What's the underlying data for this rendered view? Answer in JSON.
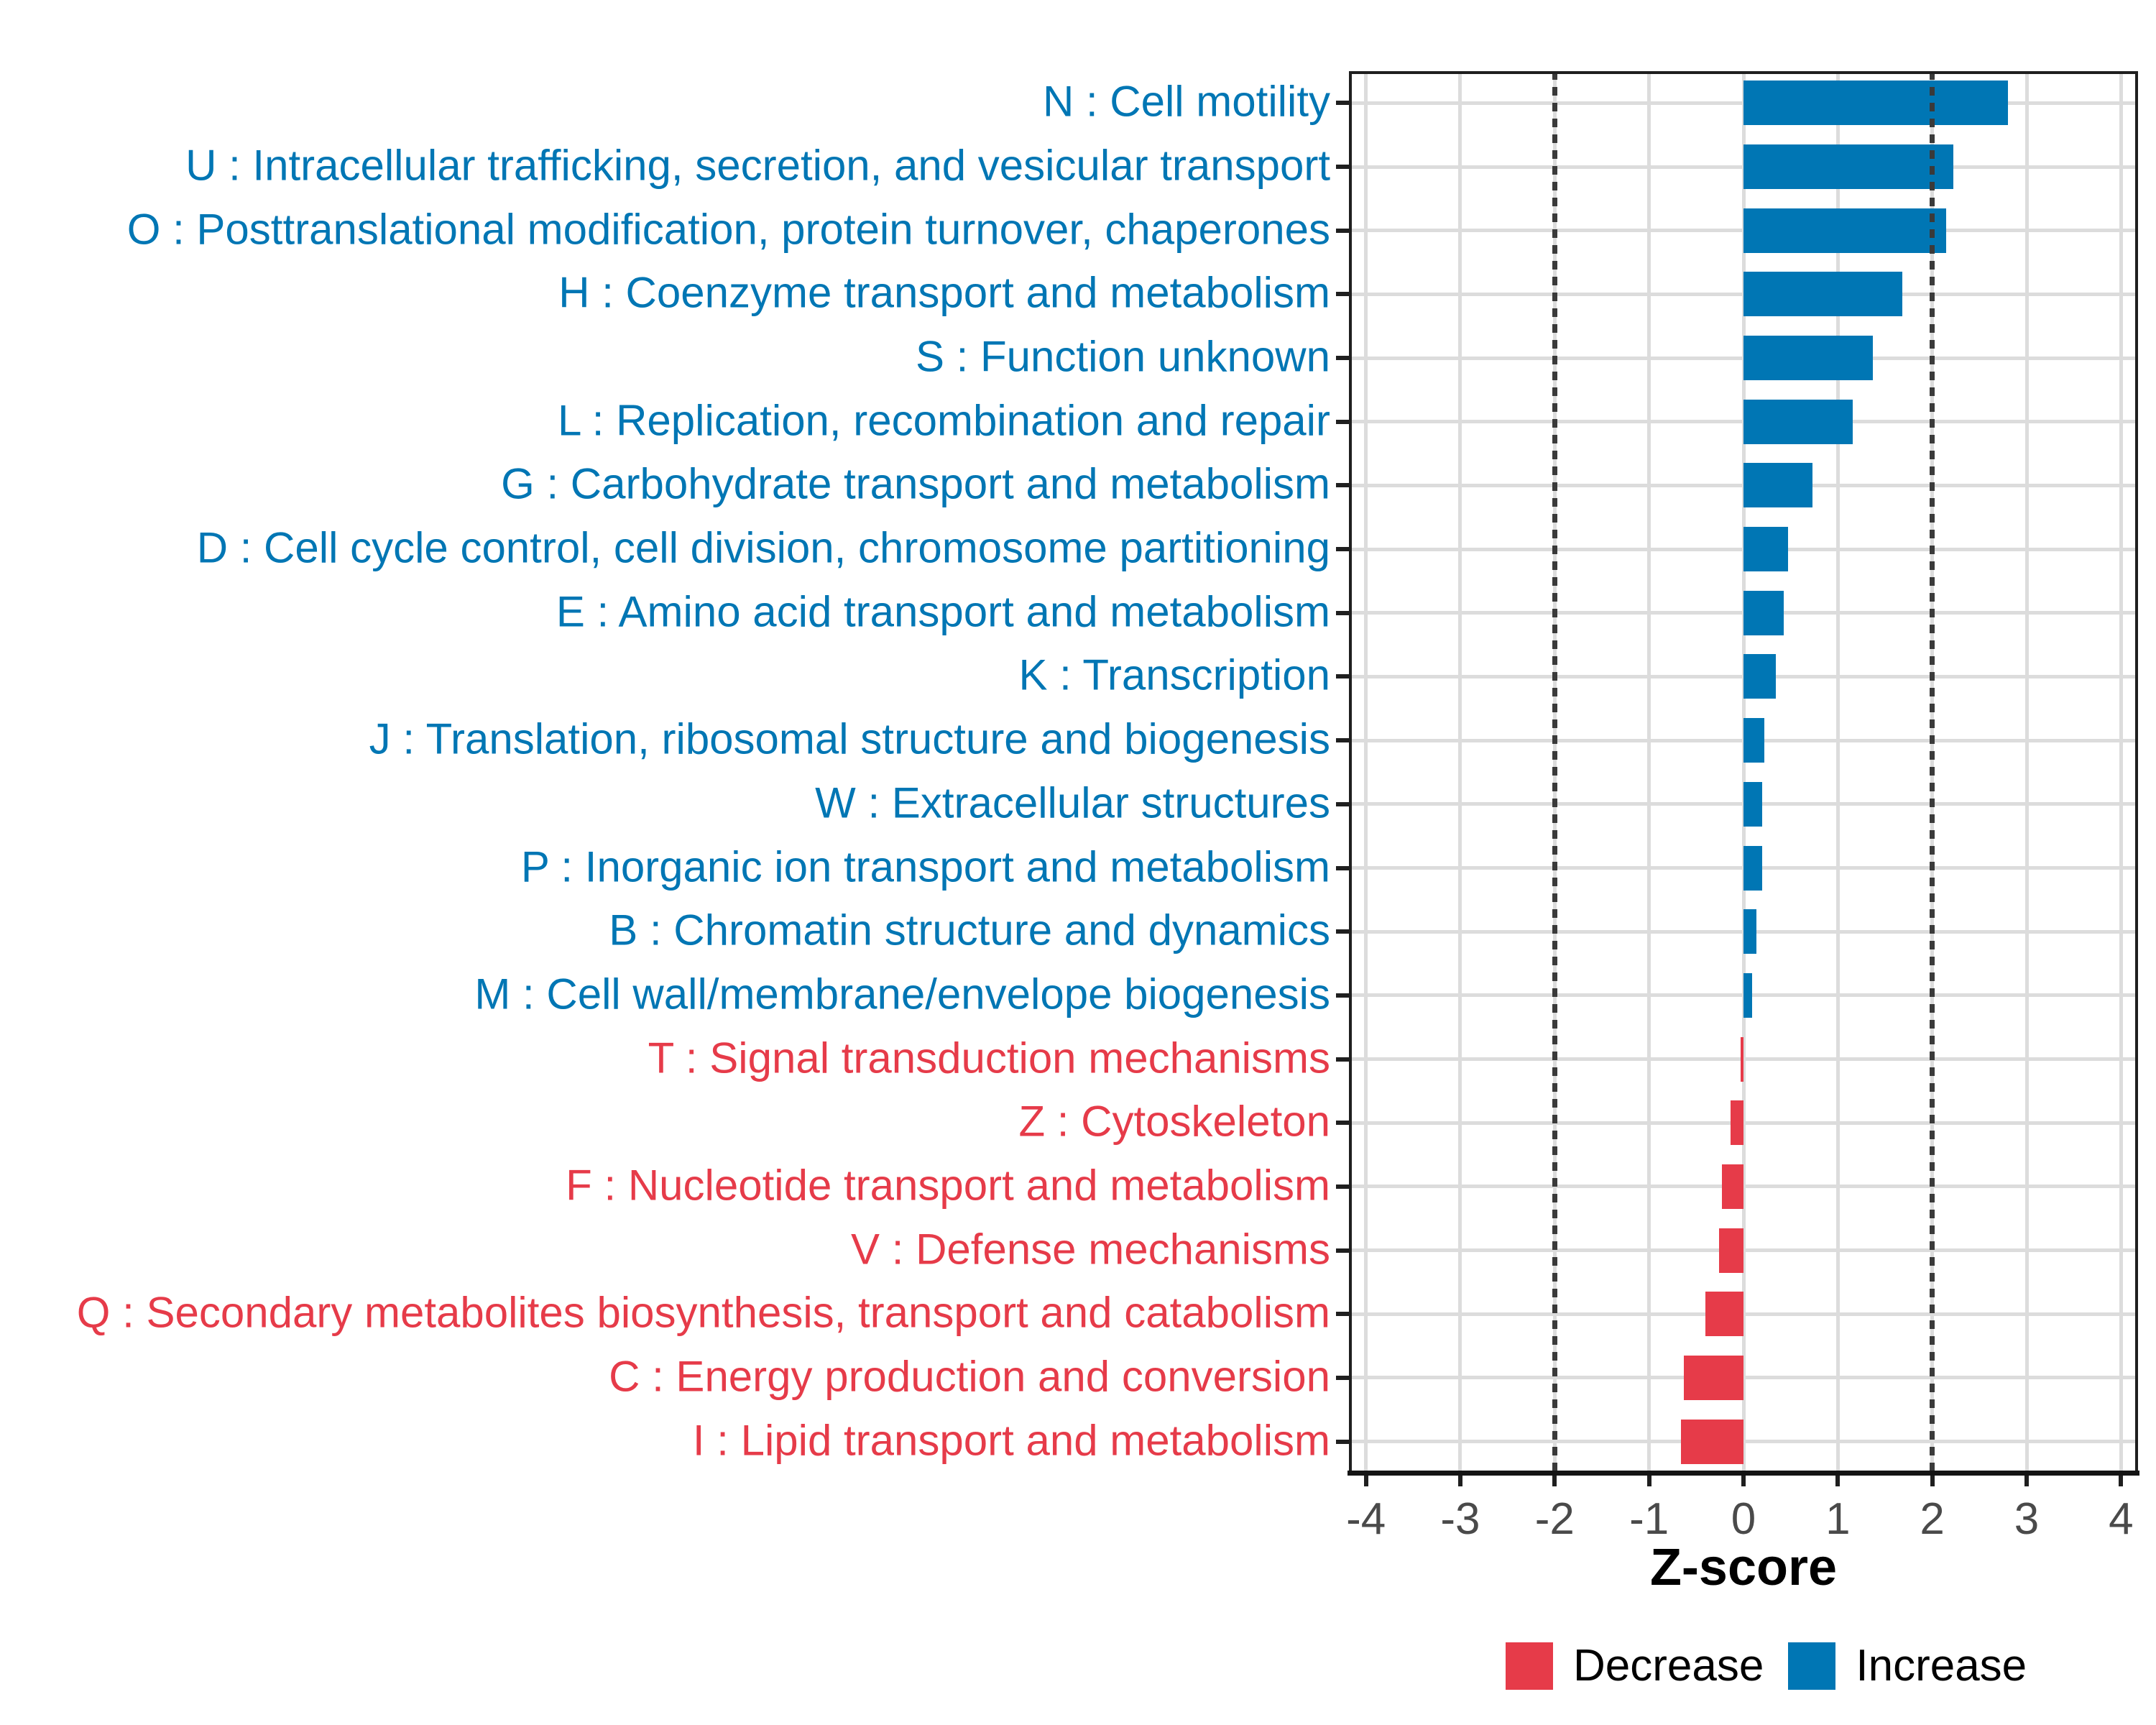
{
  "chart_data": {
    "type": "bar",
    "orientation": "horizontal",
    "title": "",
    "xlabel": "Z-score",
    "ylabel": "",
    "xlim": [
      -4.18,
      4.18
    ],
    "x_ticks": [
      -4,
      -3,
      -2,
      -1,
      0,
      1,
      2,
      3,
      4
    ],
    "reference_lines": [
      -2,
      2
    ],
    "grid": true,
    "categories": [
      {
        "code": "N",
        "label": "N : Cell motility",
        "value": 2.8,
        "direction": "Increase"
      },
      {
        "code": "U",
        "label": "U : Intracellular trafficking, secretion, and vesicular transport",
        "value": 2.22,
        "direction": "Increase"
      },
      {
        "code": "O",
        "label": "O : Posttranslational modification, protein turnover, chaperones",
        "value": 2.15,
        "direction": "Increase"
      },
      {
        "code": "H",
        "label": "H : Coenzyme transport and metabolism",
        "value": 1.68,
        "direction": "Increase"
      },
      {
        "code": "S",
        "label": "S : Function unknown",
        "value": 1.37,
        "direction": "Increase"
      },
      {
        "code": "L",
        "label": "L : Replication, recombination and repair",
        "value": 1.16,
        "direction": "Increase"
      },
      {
        "code": "G",
        "label": "G : Carbohydrate transport and metabolism",
        "value": 0.73,
        "direction": "Increase"
      },
      {
        "code": "D",
        "label": "D : Cell cycle control, cell division, chromosome partitioning",
        "value": 0.47,
        "direction": "Increase"
      },
      {
        "code": "E",
        "label": "E : Amino acid transport and metabolism",
        "value": 0.43,
        "direction": "Increase"
      },
      {
        "code": "K",
        "label": "K : Transcription",
        "value": 0.34,
        "direction": "Increase"
      },
      {
        "code": "J",
        "label": "J : Translation, ribosomal structure and biogenesis",
        "value": 0.22,
        "direction": "Increase"
      },
      {
        "code": "W",
        "label": "W : Extracellular structures",
        "value": 0.2,
        "direction": "Increase"
      },
      {
        "code": "P",
        "label": "P : Inorganic ion transport and metabolism",
        "value": 0.2,
        "direction": "Increase"
      },
      {
        "code": "B",
        "label": "B : Chromatin structure and dynamics",
        "value": 0.14,
        "direction": "Increase"
      },
      {
        "code": "M",
        "label": "M : Cell wall/membrane/envelope biogenesis",
        "value": 0.09,
        "direction": "Increase"
      },
      {
        "code": "T",
        "label": "T : Signal transduction mechanisms",
        "value": -0.03,
        "direction": "Decrease"
      },
      {
        "code": "Z",
        "label": "Z : Cytoskeleton",
        "value": -0.14,
        "direction": "Decrease"
      },
      {
        "code": "F",
        "label": "F : Nucleotide transport and metabolism",
        "value": -0.23,
        "direction": "Decrease"
      },
      {
        "code": "V",
        "label": "V : Defense mechanisms",
        "value": -0.26,
        "direction": "Decrease"
      },
      {
        "code": "Q",
        "label": "Q : Secondary metabolites biosynthesis, transport and catabolism",
        "value": -0.4,
        "direction": "Decrease"
      },
      {
        "code": "C",
        "label": "C : Energy production and conversion",
        "value": -0.63,
        "direction": "Decrease"
      },
      {
        "code": "I",
        "label": "I : Lipid transport and metabolism",
        "value": -0.66,
        "direction": "Decrease"
      }
    ],
    "legend": {
      "position": "bottom-right",
      "items": [
        {
          "label": "Decrease",
          "color": "#E63B49"
        },
        {
          "label": "Increase",
          "color": "#0076B4"
        }
      ]
    },
    "colors": {
      "increase": "#0076B4",
      "decrease": "#E63B49",
      "gridline": "#dcdcdc",
      "reference_line": "#3a3a3a",
      "tick_label": "#4a4a4a",
      "axis_title": "#000000",
      "panel_border": "#1f1f1f"
    }
  }
}
